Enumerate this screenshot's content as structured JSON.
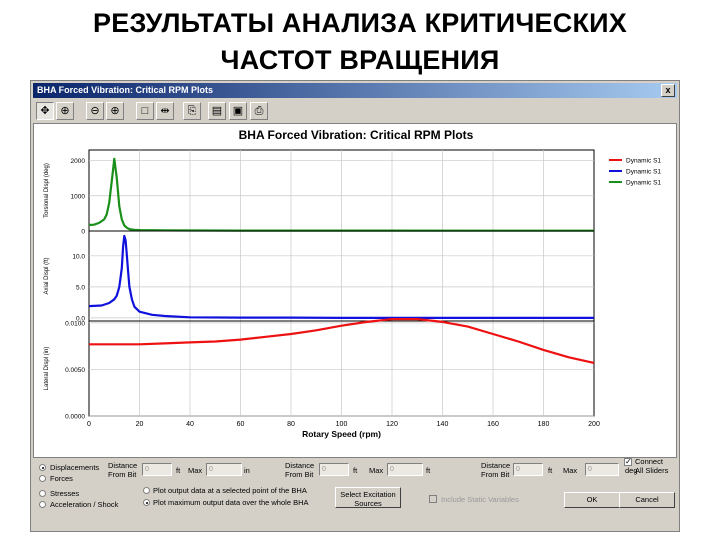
{
  "slide": {
    "title_line1": "РЕЗУЛЬТАТЫ АНАЛИЗА КРИТИЧЕСКИХ",
    "title_line2": "ЧАСТОТ ВРАЩЕНИЯ"
  },
  "window": {
    "title": "BHA Forced Vibration: Critical RPM Plots",
    "close_glyph": "x"
  },
  "toolbar": {
    "icons": [
      "move-icon",
      "zoom-window-icon",
      "zoom-out-icon",
      "zoom-in-icon",
      "select-box-icon",
      "pan-split-icon",
      "copy-icon",
      "print-preview-icon",
      "save-icon",
      "print-icon"
    ]
  },
  "colors": {
    "torsional": "#1a8f1a",
    "axial": "#1111dd",
    "lateral": "#ee1111",
    "window": "#d4d0c8",
    "titlebar": "#0a246a"
  },
  "chart_data": {
    "type": "line",
    "title": "BHA Forced Vibration: Critical RPM Plots",
    "xlabel": "Rotary Speed (rpm)",
    "xlim": [
      0,
      200
    ],
    "x_ticks": [
      "0",
      "20",
      "40",
      "60",
      "80",
      "100",
      "120",
      "140",
      "160",
      "180",
      "200"
    ],
    "grid": true,
    "legend_position": "top-right",
    "legend": [
      {
        "name": "Dynamic S1",
        "color": "#ee1111"
      },
      {
        "name": "Dynamic S1",
        "color": "#1111dd"
      },
      {
        "name": "Dynamic S1",
        "color": "#1a8f1a"
      }
    ],
    "panels": [
      {
        "ylabel": "Torsional Displ (deg)",
        "ylim": [
          0,
          2300
        ],
        "y_ticks": [
          0,
          1000,
          2000
        ],
        "y_tick_labels": [
          "0",
          "1000",
          "2000"
        ],
        "series": [
          {
            "name": "Dynamic S1",
            "color": "#1a8f1a",
            "x": [
              0,
              2,
              4,
              6,
              7,
              8,
              9,
              10,
              11,
              12,
              13,
              14,
              15,
              16,
              18,
              20,
              30,
              60,
              100,
              200
            ],
            "y": [
              170,
              180,
              230,
              330,
              470,
              800,
              1400,
              2050,
              1500,
              700,
              330,
              160,
              90,
              55,
              35,
              25,
              18,
              12,
              10,
              8
            ]
          }
        ]
      },
      {
        "ylabel": "Axial Displ (ft)",
        "ylim": [
          -0.5,
          14
        ],
        "y_ticks": [
          0,
          5,
          10
        ],
        "y_tick_labels": [
          "0.0",
          "5.0",
          "10.0"
        ],
        "series": [
          {
            "name": "Dynamic S1",
            "color": "#1111dd",
            "x": [
              0,
              5,
              8,
              10,
              11,
              12,
              13,
              13.5,
              14,
              14.5,
              15,
              15.5,
              16,
              17,
              18,
              20,
              25,
              30,
              40,
              60,
              80,
              100,
              200
            ],
            "y": [
              1.9,
              2.0,
              2.4,
              3.0,
              3.6,
              5.0,
              8.0,
              11.5,
              13.2,
              12.5,
              10.0,
              7.5,
              5.0,
              3.0,
              1.8,
              1.0,
              0.5,
              0.3,
              0.1,
              0.05,
              0.05,
              0.0,
              0.0
            ]
          }
        ]
      },
      {
        "ylabel": "Lateral Displ (in)",
        "ylim": [
          0,
          0.0102
        ],
        "y_ticks": [
          0,
          0.005,
          0.01
        ],
        "y_tick_labels": [
          "0.0000",
          "0.0050",
          "0.0100"
        ],
        "series": [
          {
            "name": "Dynamic S1",
            "color": "#ee1111",
            "x": [
              0,
              10,
              20,
              30,
              40,
              50,
              60,
              70,
              80,
              90,
              100,
              110,
              120,
              125,
              130,
              140,
              150,
              160,
              170,
              180,
              190,
              200
            ],
            "y": [
              0.0077,
              0.0077,
              0.0077,
              0.0078,
              0.0079,
              0.008,
              0.0082,
              0.0085,
              0.0088,
              0.0092,
              0.0097,
              0.0101,
              0.0104,
              0.0104,
              0.0104,
              0.0101,
              0.0096,
              0.0088,
              0.008,
              0.0071,
              0.0063,
              0.0057
            ]
          }
        ]
      }
    ]
  },
  "controls": {
    "radios_left": [
      {
        "label": "Displacements",
        "selected": true
      },
      {
        "label": "Forces",
        "selected": false
      },
      {
        "label": "Stresses",
        "selected": false
      },
      {
        "label": "Acceleration / Shock",
        "selected": false
      }
    ],
    "plot_options": [
      {
        "label": "Plot output data at a selected point of the BHA",
        "selected": false
      },
      {
        "label": "Plot maximum output data over the whole BHA",
        "selected": true
      }
    ],
    "groups": [
      {
        "dist_label_1": "Distance",
        "dist_label_2": "From Bit",
        "dist_value": "0",
        "dist_unit": "ft",
        "max_label": "Max",
        "max_value": "0",
        "max_unit": "in"
      },
      {
        "dist_label_1": "Distance",
        "dist_label_2": "From Bit",
        "dist_value": "0",
        "dist_unit": "ft",
        "max_label": "Max",
        "max_value": "0",
        "max_unit": "ft"
      },
      {
        "dist_label_1": "Distance",
        "dist_label_2": "From Bit",
        "dist_value": "0",
        "dist_unit": "ft",
        "max_label": "Max",
        "max_value": "0",
        "max_unit": "deg"
      }
    ],
    "connect_sliders_1": "Connect",
    "connect_sliders_2": "All Sliders",
    "connect_checked": "✓",
    "select_excitation_1": "Select Excitation",
    "select_excitation_2": "Sources",
    "include_static": "Include Static Variables",
    "ok_label": "OK",
    "cancel_label": "Cancel"
  }
}
